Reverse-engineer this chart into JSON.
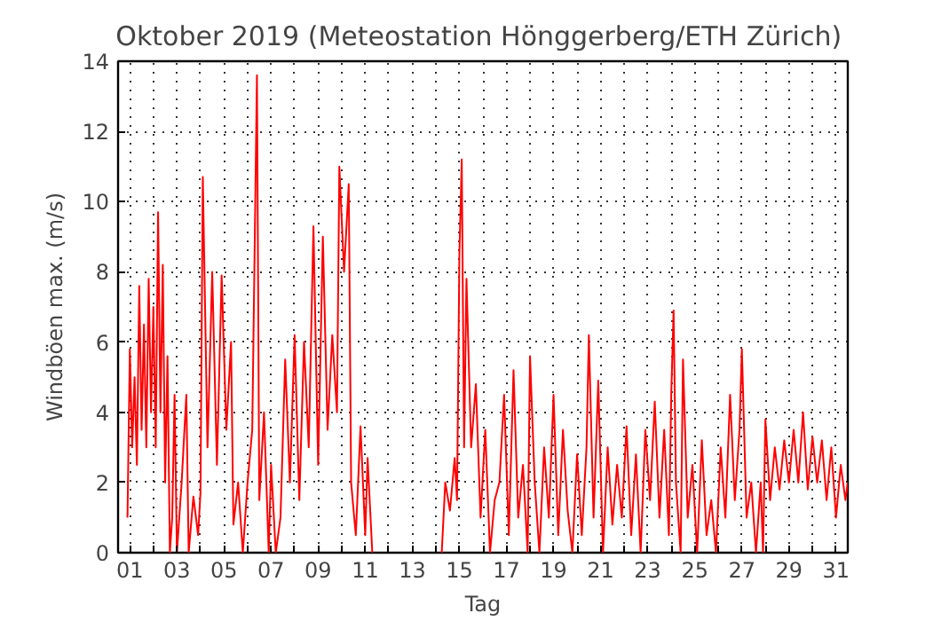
{
  "chart_data": {
    "type": "line",
    "title": "Oktober 2019  (Meteostation Hönggerberg/ETH Zürich)",
    "xlabel": "Tag",
    "ylabel": "Windböen max. (m/s)",
    "xlim": [
      0.5,
      31.5
    ],
    "ylim": [
      0,
      14
    ],
    "xticks": [
      {
        "value": 1,
        "label": "01"
      },
      {
        "value": 2,
        "label": null
      },
      {
        "value": 3,
        "label": "03"
      },
      {
        "value": 4,
        "label": null
      },
      {
        "value": 5,
        "label": "05"
      },
      {
        "value": 6,
        "label": null
      },
      {
        "value": 7,
        "label": "07"
      },
      {
        "value": 8,
        "label": null
      },
      {
        "value": 9,
        "label": "09"
      },
      {
        "value": 10,
        "label": null
      },
      {
        "value": 11,
        "label": "11"
      },
      {
        "value": 12,
        "label": null
      },
      {
        "value": 13,
        "label": "13"
      },
      {
        "value": 14,
        "label": null
      },
      {
        "value": 15,
        "label": "15"
      },
      {
        "value": 16,
        "label": null
      },
      {
        "value": 17,
        "label": "17"
      },
      {
        "value": 18,
        "label": null
      },
      {
        "value": 19,
        "label": "19"
      },
      {
        "value": 20,
        "label": null
      },
      {
        "value": 21,
        "label": "21"
      },
      {
        "value": 22,
        "label": null
      },
      {
        "value": 23,
        "label": "23"
      },
      {
        "value": 24,
        "label": null
      },
      {
        "value": 25,
        "label": "25"
      },
      {
        "value": 26,
        "label": null
      },
      {
        "value": 27,
        "label": "27"
      },
      {
        "value": 28,
        "label": null
      },
      {
        "value": 29,
        "label": "29"
      },
      {
        "value": 30,
        "label": null
      },
      {
        "value": 31,
        "label": "31"
      }
    ],
    "yticks": [
      0,
      2,
      4,
      6,
      8,
      10,
      12,
      14
    ],
    "grid": true,
    "marker": "none",
    "line_style": "solid",
    "series": [
      {
        "color": "#ff0000",
        "x": [
          0.9,
          1.0,
          1.1,
          1.2,
          1.3,
          1.4,
          1.5,
          1.6,
          1.7,
          1.8,
          1.9,
          2.0,
          2.1,
          2.2,
          2.3,
          2.4,
          2.5,
          2.6,
          2.7,
          2.8,
          2.9,
          3.0,
          3.2,
          3.4,
          3.5,
          3.7,
          3.9,
          4.0,
          4.1,
          4.3,
          4.5,
          4.7,
          4.9,
          5.1,
          5.3,
          5.4,
          5.6,
          5.8,
          6.0,
          6.2,
          6.4,
          6.5,
          6.7,
          6.9,
          7.0,
          7.2,
          7.4,
          7.6,
          7.8,
          8.0,
          8.2,
          8.4,
          8.6,
          8.8,
          9.0,
          9.2,
          9.4,
          9.6,
          9.8,
          9.9,
          10.1,
          10.3,
          10.4,
          10.6,
          10.8,
          11.0,
          11.1,
          11.3,
          11.4,
          14.25,
          14.4,
          14.6,
          14.8,
          14.9,
          15.0,
          15.1,
          15.2,
          15.3,
          15.5,
          15.7,
          15.9,
          16.1,
          16.3,
          16.5,
          16.7,
          16.9,
          17.1,
          17.3,
          17.5,
          17.7,
          17.9,
          18.0,
          18.2,
          18.4,
          18.6,
          18.8,
          19.0,
          19.2,
          19.4,
          19.6,
          19.8,
          20.0,
          20.2,
          20.4,
          20.5,
          20.7,
          20.9,
          21.1,
          21.3,
          21.5,
          21.7,
          21.9,
          22.1,
          22.3,
          22.5,
          22.7,
          22.9,
          23.1,
          23.3,
          23.5,
          23.7,
          23.9,
          24.0,
          24.1,
          24.2,
          24.4,
          24.5,
          24.7,
          24.9,
          25.1,
          25.3,
          25.5,
          25.7,
          25.9,
          26.1,
          26.3,
          26.5,
          26.7,
          26.9,
          27.0,
          27.2,
          27.4,
          27.6,
          27.8,
          27.9,
          28.0,
          28.2,
          28.4,
          28.6,
          28.8,
          29.0,
          29.2,
          29.4,
          29.6,
          29.8,
          30.0,
          30.2,
          30.4,
          30.6,
          30.8,
          31.0,
          31.2,
          31.4,
          31.5
        ],
        "values": [
          1.0,
          5.8,
          3.0,
          5.0,
          2.5,
          7.6,
          3.5,
          6.5,
          3.0,
          7.8,
          4.0,
          7.0,
          3.0,
          9.7,
          4.0,
          8.2,
          2.0,
          5.6,
          0,
          1.0,
          4.5,
          0,
          2.0,
          4.5,
          0,
          1.6,
          0.5,
          1.7,
          10.7,
          3.0,
          8.0,
          2.5,
          7.9,
          3.5,
          6.0,
          0.8,
          2.0,
          0,
          2.0,
          3.5,
          13.6,
          1.5,
          4.0,
          0,
          2.5,
          0,
          1.0,
          5.5,
          2.0,
          6.2,
          1.5,
          6.0,
          3.0,
          9.3,
          2.5,
          9.0,
          3.5,
          6.2,
          4.0,
          11.0,
          8.0,
          10.5,
          2.0,
          0.5,
          3.6,
          0.5,
          2.7,
          0,
          null,
          0,
          2.0,
          1.2,
          2.7,
          1.5,
          8.5,
          11.2,
          3.0,
          7.8,
          3.0,
          4.8,
          1.0,
          3.5,
          0,
          1.5,
          2.0,
          4.5,
          0.5,
          5.2,
          1.0,
          2.5,
          0,
          5.6,
          2.0,
          0,
          3.0,
          1.0,
          4.5,
          0.5,
          3.5,
          1.2,
          0,
          2.8,
          0.5,
          3.0,
          6.2,
          1.0,
          4.9,
          0,
          3.0,
          0.8,
          2.5,
          1.0,
          3.6,
          0.5,
          2.8,
          0,
          3.5,
          1.5,
          4.3,
          1.0,
          3.5,
          0.5,
          4.5,
          6.9,
          2.0,
          0,
          5.5,
          1.0,
          2.5,
          0,
          3.2,
          0.5,
          1.5,
          0,
          3.0,
          1.0,
          4.5,
          1.5,
          3.5,
          5.8,
          1.0,
          2.0,
          0,
          2.0,
          0,
          3.8,
          1.5,
          3.0,
          1.8,
          3.2,
          2.0,
          3.5,
          2.0,
          4.0,
          1.8,
          3.3,
          2.0,
          3.2,
          1.5,
          3.0,
          1.0,
          2.5,
          1.5,
          2.0
        ]
      }
    ]
  }
}
